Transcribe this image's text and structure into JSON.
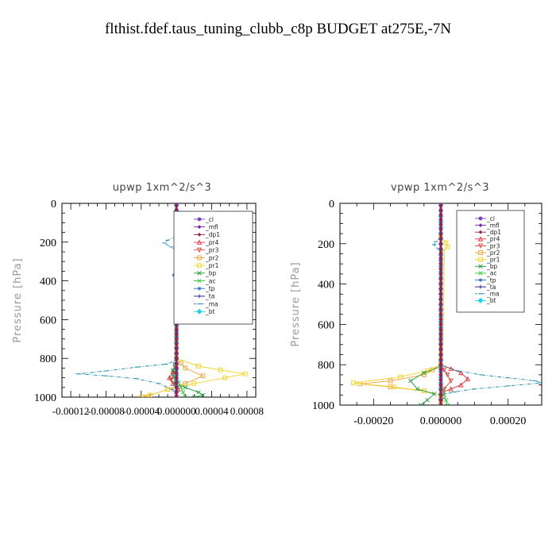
{
  "title": "flthist.fdef.taus_tuning_clubb_c8p  BUDGET at275E,-7N",
  "colors": {
    "_cl": "#7b3fbf",
    "_mfl": "#7a1fa0",
    "_dp1": "#9c1f4a",
    "_pr4": "#e8303a",
    "_pr3": "#e0443a",
    "_pr2": "#f0a030",
    "_pr1": "#f2d21c",
    "_bp": "#1f9a3a",
    "_ac": "#37c93f",
    "_tp": "#2a6fcf",
    "_ta": "#1a1a8a",
    "_ma": "#1a8fb0",
    "_bt": "#1ed0e8"
  },
  "chart_data": [
    {
      "type": "line",
      "title": "upwp   1xm^2/s^3",
      "ylabel": "Pressure  [hPa]",
      "xlabel": "",
      "xlim": [
        -0.00013,
        9e-05
      ],
      "ylim": [
        1000,
        0
      ],
      "xticks": [
        -0.00012,
        -8e-05,
        -4e-05,
        0,
        4e-05,
        8e-05
      ],
      "xtick_labels": [
        "-0.00012",
        "-0.00008",
        "-0.00004",
        "0.000000",
        "0.00004",
        "0.00008"
      ],
      "yticks": [
        0,
        200,
        400,
        600,
        800,
        1000
      ],
      "ytick_labels": [
        "0",
        "200",
        "400",
        "600",
        "800",
        "1000"
      ],
      "legend_position": "top-right",
      "series": [
        {
          "name": "_cl",
          "points": [
            [
              0,
              10
            ],
            [
              0,
              200
            ],
            [
              0,
              400
            ],
            [
              0,
              600
            ],
            [
              0,
              800
            ],
            [
              0,
              1000
            ]
          ]
        },
        {
          "name": "_mfl",
          "points": [
            [
              0,
              10
            ],
            [
              0,
              200
            ],
            [
              0,
              400
            ],
            [
              0,
              600
            ],
            [
              0,
              800
            ],
            [
              0,
              1000
            ]
          ]
        },
        {
          "name": "_dp1",
          "points": [
            [
              0,
              10
            ],
            [
              0,
              200
            ],
            [
              0,
              400
            ],
            [
              0,
              600
            ],
            [
              0,
              800
            ],
            [
              0,
              1000
            ]
          ]
        },
        {
          "name": "_pr4",
          "points": [
            [
              0,
              800
            ],
            [
              0,
              840
            ],
            [
              -4e-06,
              870
            ],
            [
              -8e-06,
              900
            ],
            [
              -4e-06,
              930
            ],
            [
              2e-06,
              960
            ],
            [
              0,
              1000
            ]
          ]
        },
        {
          "name": "_pr3",
          "points": [
            [
              0,
              800
            ],
            [
              -3e-06,
              870
            ],
            [
              -6e-06,
              910
            ],
            [
              0,
              950
            ],
            [
              0,
              1000
            ]
          ]
        },
        {
          "name": "_pr2",
          "points": [
            [
              0,
              800
            ],
            [
              1e-05,
              850
            ],
            [
              3e-05,
              890
            ],
            [
              1e-05,
              930
            ],
            [
              -1e-05,
              960
            ],
            [
              -3e-05,
              990
            ],
            [
              -3.5e-05,
              1000
            ]
          ]
        },
        {
          "name": "_pr1",
          "points": [
            [
              0,
              160
            ],
            [
              8e-06,
              190
            ],
            [
              1e-05,
              215
            ],
            [
              0,
              240
            ],
            [
              0,
              800
            ],
            [
              2.5e-05,
              840
            ],
            [
              5e-05,
              860
            ],
            [
              7.8e-05,
              880
            ],
            [
              5.5e-05,
              900
            ],
            [
              2e-05,
              930
            ],
            [
              -1e-05,
              960
            ],
            [
              -3e-05,
              990
            ],
            [
              -4e-05,
              1000
            ]
          ]
        },
        {
          "name": "_bp",
          "points": [
            [
              0,
              800
            ],
            [
              -4e-06,
              860
            ],
            [
              -2e-06,
              930
            ],
            [
              1e-05,
              950
            ],
            [
              2.5e-05,
              975
            ],
            [
              3e-05,
              990
            ],
            [
              2e-05,
              1000
            ]
          ]
        },
        {
          "name": "_ac",
          "points": [
            [
              0,
              900
            ],
            [
              5e-06,
              950
            ],
            [
              1e-05,
              1000
            ]
          ]
        },
        {
          "name": "_tp",
          "points": [
            [
              0,
              10
            ],
            [
              0,
              350
            ],
            [
              -3e-06,
              370
            ],
            [
              0,
              390
            ],
            [
              0,
              1000
            ]
          ]
        },
        {
          "name": "_ta",
          "points": [
            [
              0,
              10
            ],
            [
              0,
              1000
            ]
          ]
        },
        {
          "name": "_ma",
          "points": [
            [
              0,
              170
            ],
            [
              -1e-05,
              190
            ],
            [
              -1.4e-05,
              205
            ],
            [
              -6e-06,
              225
            ],
            [
              0,
              240
            ],
            [
              0,
              810
            ],
            [
              -1.2e-05,
              830
            ],
            [
              -4.5e-05,
              845
            ],
            [
              -8e-05,
              865
            ],
            [
              -0.000112,
              880
            ],
            [
              -8e-05,
              890
            ],
            [
              -4.5e-05,
              905
            ],
            [
              -2e-05,
              930
            ],
            [
              -5e-06,
              960
            ],
            [
              0,
              1000
            ]
          ]
        },
        {
          "name": "_bt",
          "points": [
            [
              0,
              10
            ],
            [
              0,
              1000
            ]
          ]
        }
      ]
    },
    {
      "type": "line",
      "title": "vpwp   1xm^2/s^3",
      "ylabel": "Pressure  [hPa]",
      "xlabel": "",
      "xlim": [
        -0.0003,
        0.0003
      ],
      "ylim": [
        1000,
        0
      ],
      "xticks": [
        -0.0002,
        0,
        0.0002
      ],
      "xtick_labels": [
        "-0.00020",
        "0.000000",
        "0.00020"
      ],
      "yticks": [
        0,
        200,
        400,
        600,
        800,
        1000
      ],
      "ytick_labels": [
        "0",
        "200",
        "400",
        "600",
        "800",
        "1000"
      ],
      "legend_position": "top-right",
      "series": [
        {
          "name": "_cl",
          "points": [
            [
              0,
              10
            ],
            [
              0,
              200
            ],
            [
              0,
              400
            ],
            [
              0,
              600
            ],
            [
              0,
              800
            ],
            [
              0,
              1000
            ]
          ]
        },
        {
          "name": "_mfl",
          "points": [
            [
              0,
              10
            ],
            [
              0,
              200
            ],
            [
              0,
              400
            ],
            [
              0,
              600
            ],
            [
              0,
              800
            ],
            [
              0,
              1000
            ]
          ]
        },
        {
          "name": "_dp1",
          "points": [
            [
              0,
              10
            ],
            [
              0,
              200
            ],
            [
              0,
              400
            ],
            [
              0,
              600
            ],
            [
              0,
              800
            ],
            [
              0,
              1000
            ]
          ]
        },
        {
          "name": "_pr4",
          "points": [
            [
              0,
              800
            ],
            [
              3e-05,
              820
            ],
            [
              6e-05,
              840
            ],
            [
              8e-05,
              870
            ],
            [
              6e-05,
              900
            ],
            [
              3e-05,
              920
            ],
            [
              0,
              940
            ],
            [
              0,
              1000
            ]
          ]
        },
        {
          "name": "_pr3",
          "points": [
            [
              0,
              800
            ],
            [
              2e-05,
              850
            ],
            [
              3e-05,
              880
            ],
            [
              1e-05,
              920
            ],
            [
              0,
              1000
            ]
          ]
        },
        {
          "name": "_pr2",
          "points": [
            [
              0,
              800
            ],
            [
              -5e-05,
              850
            ],
            [
              -0.00015,
              880
            ],
            [
              -0.00024,
              895
            ],
            [
              -0.00015,
              910
            ],
            [
              -5e-05,
              930
            ],
            [
              0,
              950
            ],
            [
              0,
              1000
            ]
          ]
        },
        {
          "name": "_pr1",
          "points": [
            [
              0,
              170
            ],
            [
              1.5e-05,
              195
            ],
            [
              2e-05,
              215
            ],
            [
              5e-06,
              240
            ],
            [
              0,
              800
            ],
            [
              -4e-05,
              830
            ],
            [
              -0.00012,
              860
            ],
            [
              -0.00026,
              890
            ],
            [
              -0.00014,
              910
            ],
            [
              -5e-05,
              930
            ],
            [
              0,
              950
            ],
            [
              0,
              1000
            ]
          ]
        },
        {
          "name": "_bp",
          "points": [
            [
              0,
              810
            ],
            [
              -5e-05,
              840
            ],
            [
              -9e-05,
              880
            ],
            [
              -7e-05,
              920
            ],
            [
              -2e-05,
              945
            ],
            [
              -4e-05,
              975
            ],
            [
              -6e-05,
              1000
            ]
          ]
        },
        {
          "name": "_ac",
          "points": [
            [
              0,
              900
            ],
            [
              1e-05,
              950
            ],
            [
              2e-05,
              1000
            ]
          ]
        },
        {
          "name": "_tp",
          "points": [
            [
              0,
              10
            ],
            [
              0,
              1000
            ]
          ]
        },
        {
          "name": "_ta",
          "points": [
            [
              0,
              10
            ],
            [
              0,
              1000
            ]
          ]
        },
        {
          "name": "_ma",
          "points": [
            [
              0,
              170
            ],
            [
              -1.5e-05,
              190
            ],
            [
              -2e-05,
              205
            ],
            [
              -8e-06,
              225
            ],
            [
              0,
              240
            ],
            [
              0,
              800
            ],
            [
              5e-05,
              830
            ],
            [
              0.00012,
              850
            ],
            [
              0.0002,
              865
            ],
            [
              0.00028,
              880
            ],
            [
              0.0003,
              890
            ],
            [
              0.0002,
              905
            ],
            [
              0.0001,
              920
            ],
            [
              4e-05,
              935
            ],
            [
              0,
              950
            ],
            [
              0,
              1000
            ]
          ]
        },
        {
          "name": "_bt",
          "points": [
            [
              0,
              10
            ],
            [
              0,
              1000
            ]
          ]
        }
      ]
    }
  ]
}
